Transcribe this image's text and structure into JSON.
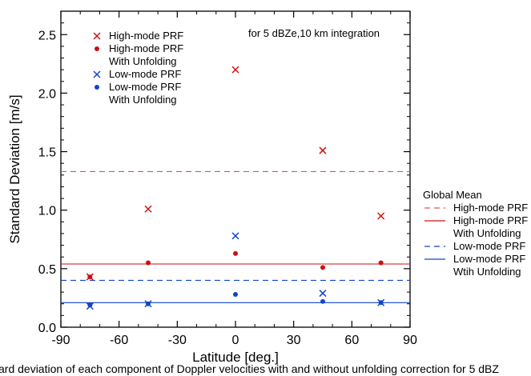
{
  "chart_data": {
    "type": "scatter",
    "xlabel": "Latitude [deg.]",
    "ylabel": "Standard Deviation [m/s]",
    "xlim": [
      -90,
      90
    ],
    "ylim": [
      0,
      2.7
    ],
    "xticks": [
      -90,
      -60,
      -30,
      0,
      30,
      60,
      90
    ],
    "yticks": [
      0.0,
      0.5,
      1.0,
      1.5,
      2.0,
      2.5
    ],
    "xtick_labels": [
      "-90",
      "-60",
      "-30",
      "0",
      "30",
      "60",
      "90"
    ],
    "ytick_labels": [
      "0.0",
      "0.5",
      "1.0",
      "1.5",
      "2.0",
      "2.5"
    ],
    "annotation": "for 5 dBZe,10 km integration",
    "series": [
      {
        "name": "High-mode PRF",
        "marker": "x",
        "color": "#cc1111",
        "x": [
          -75,
          -45,
          0,
          45,
          75
        ],
        "y": [
          0.43,
          1.01,
          2.2,
          1.51,
          0.95
        ]
      },
      {
        "name": "High-mode PRF With Unfolding",
        "marker": "dot",
        "color": "#cc1111",
        "x": [
          -75,
          -45,
          0,
          45,
          75
        ],
        "y": [
          0.43,
          0.55,
          0.63,
          0.51,
          0.55
        ]
      },
      {
        "name": "Low-mode PRF",
        "marker": "x",
        "color": "#1144cc",
        "x": [
          -75,
          -45,
          0,
          45,
          75
        ],
        "y": [
          0.18,
          0.2,
          0.78,
          0.29,
          0.21
        ]
      },
      {
        "name": "Low-mode PRF With Unfolding",
        "marker": "dot",
        "color": "#1144cc",
        "x": [
          -75,
          -45,
          0,
          45,
          75
        ],
        "y": [
          0.19,
          0.2,
          0.28,
          0.22,
          0.21
        ]
      }
    ],
    "global_means": [
      {
        "name": "High-mode PRF",
        "value": 1.33,
        "dash": true,
        "color": "#dd5555"
      },
      {
        "name": "High-mode PRF With Unfolding",
        "value": 0.54,
        "dash": false,
        "color": "#cc1111"
      },
      {
        "name": "Low-mode PRF",
        "value": 0.4,
        "dash": true,
        "color": "#1144cc"
      },
      {
        "name": "Low-mode PRF Wtih Unfolding",
        "value": 0.21,
        "dash": false,
        "color": "#1144cc"
      }
    ],
    "legend_points": {
      "placement": "top-left",
      "entries": [
        {
          "marker": "x",
          "color": "#cc1111",
          "lines": [
            "High-mode PRF"
          ]
        },
        {
          "marker": "dot",
          "color": "#cc1111",
          "lines": [
            "High-mode PRF",
            "With Unfolding"
          ]
        },
        {
          "marker": "x",
          "color": "#1144cc",
          "lines": [
            "Low-mode PRF"
          ]
        },
        {
          "marker": "dot",
          "color": "#1144cc",
          "lines": [
            "Low-mode PRF",
            "With Unfolding"
          ]
        }
      ]
    },
    "legend_means": {
      "title": "Global Mean",
      "placement": "right",
      "entries": [
        {
          "dash": true,
          "color": "#dd5555",
          "lines": [
            "High-mode PRF"
          ]
        },
        {
          "dash": false,
          "color": "#cc1111",
          "lines": [
            "High-mode PRF",
            "With Unfolding"
          ]
        },
        {
          "dash": true,
          "color": "#1144cc",
          "lines": [
            "Low-mode PRF"
          ]
        },
        {
          "dash": false,
          "color": "#1144cc",
          "lines": [
            "Low-mode PRF",
            "Wtih Unfolding"
          ]
        }
      ]
    },
    "caption_fragment": "ard deviation of each component of Doppler velocities with and without unfolding correction for 5 dBZ"
  }
}
